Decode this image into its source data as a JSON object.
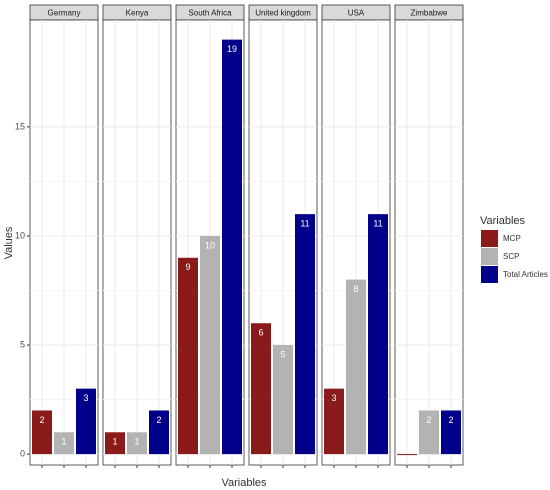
{
  "chart_data": {
    "type": "bar",
    "x_label": "Variables",
    "y_label": "Values",
    "legend_title": "Variables",
    "categories": [
      "Germany",
      "Kenya",
      "South Africa",
      "United kingdom",
      "USA",
      "Zimbabwe"
    ],
    "series": [
      {
        "name": "MCP",
        "color": "#8b1a1a",
        "values": [
          2,
          1,
          9,
          6,
          3,
          0
        ]
      },
      {
        "name": "SCP",
        "color": "#b3b3b3",
        "values": [
          1,
          1,
          10,
          5,
          8,
          2
        ]
      },
      {
        "name": "Total Articles",
        "color": "#00008b",
        "values": [
          3,
          2,
          19,
          11,
          11,
          2
        ]
      }
    ],
    "ylim": [
      -0.5,
      19.9
    ],
    "yticks": [
      0,
      5,
      10,
      15
    ],
    "grid": true,
    "legend": "right"
  }
}
